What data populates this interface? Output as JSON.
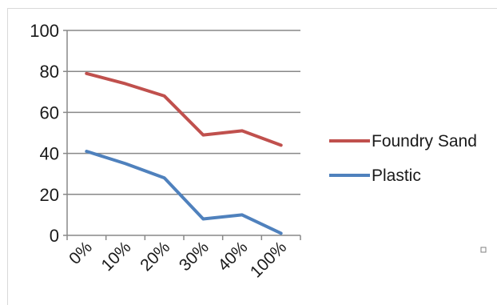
{
  "chart_data": {
    "type": "line",
    "categories": [
      "0%",
      "10%",
      "20%",
      "30%",
      "40%",
      "100%"
    ],
    "ylim": [
      0,
      100
    ],
    "yticks": [
      0,
      20,
      40,
      60,
      80,
      100
    ],
    "grid": true,
    "legend_position": "right",
    "series": [
      {
        "name": "Foundry Sand",
        "color": "#c0504d",
        "values": [
          79,
          74,
          68,
          49,
          51,
          44
        ]
      },
      {
        "name": "Plastic",
        "color": "#4f81bd",
        "values": [
          41,
          35,
          28,
          8,
          10,
          1
        ]
      }
    ]
  }
}
